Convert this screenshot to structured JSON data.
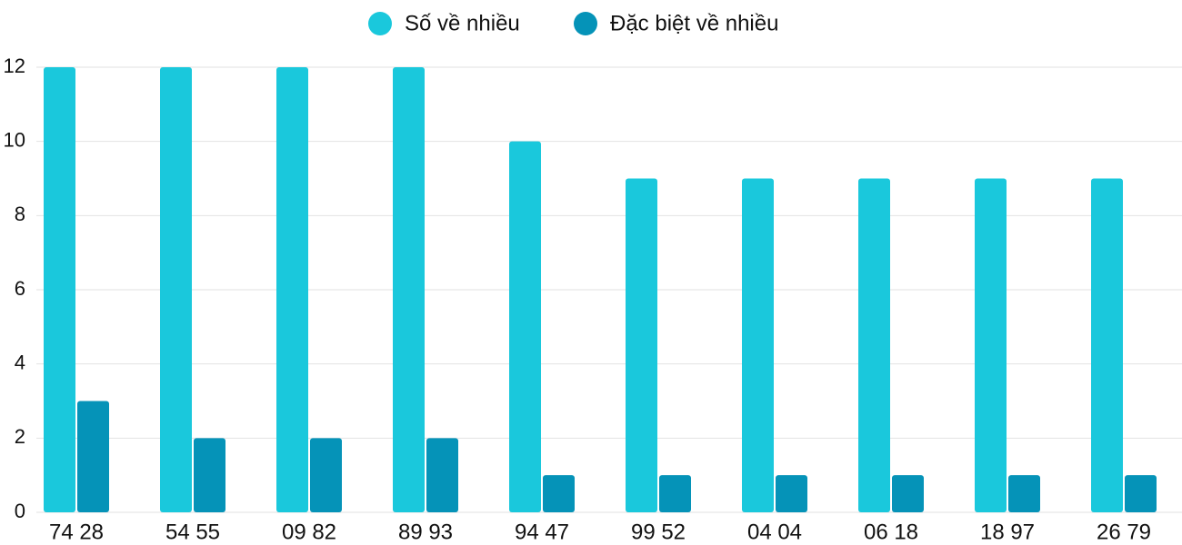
{
  "chart_data": {
    "type": "bar",
    "categories": [
      "74 28",
      "54 55",
      "09 82",
      "89 93",
      "94 47",
      "99 52",
      "04 04",
      "06 18",
      "18 97",
      "26 79"
    ],
    "series": [
      {
        "name": "Số về nhiều",
        "color": "#1ac8dc",
        "values": [
          12,
          12,
          12,
          12,
          10,
          9,
          9,
          9,
          9,
          9
        ]
      },
      {
        "name": "Đặc biệt về nhiều",
        "color": "#0593b8",
        "values": [
          3,
          2,
          2,
          2,
          1,
          1,
          1,
          1,
          1,
          1
        ]
      }
    ],
    "ylim": [
      0,
      12
    ],
    "yticks": [
      0,
      2,
      4,
      6,
      8,
      10,
      12
    ],
    "grid": true,
    "legend": "top"
  }
}
